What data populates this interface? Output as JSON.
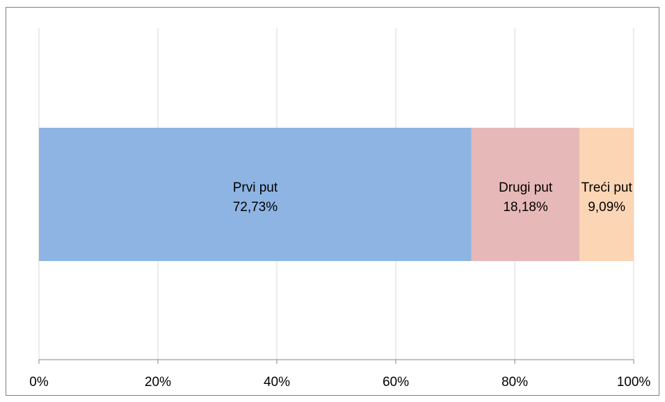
{
  "chart_data": {
    "type": "bar",
    "orientation": "horizontal",
    "stacked": true,
    "percent_stacked": true,
    "series": [
      {
        "name": "Prvi put",
        "value": 72.73,
        "label": "72,73%",
        "color": "#8eb4e3"
      },
      {
        "name": "Drugi put",
        "value": 18.18,
        "label": "18,18%",
        "color": "#e6b9b8"
      },
      {
        "name": "Treći put",
        "value": 9.09,
        "label": "9,09%",
        "color": "#fcd5b5"
      }
    ],
    "x_ticks": [
      {
        "value": 0,
        "label": "0%"
      },
      {
        "value": 20,
        "label": "20%"
      },
      {
        "value": 40,
        "label": "40%"
      },
      {
        "value": 60,
        "label": "60%"
      },
      {
        "value": 80,
        "label": "80%"
      },
      {
        "value": 100,
        "label": "100%"
      }
    ],
    "xlim": [
      0,
      100
    ],
    "grid": true,
    "legend": "none",
    "title": "",
    "xlabel": "",
    "ylabel": ""
  }
}
